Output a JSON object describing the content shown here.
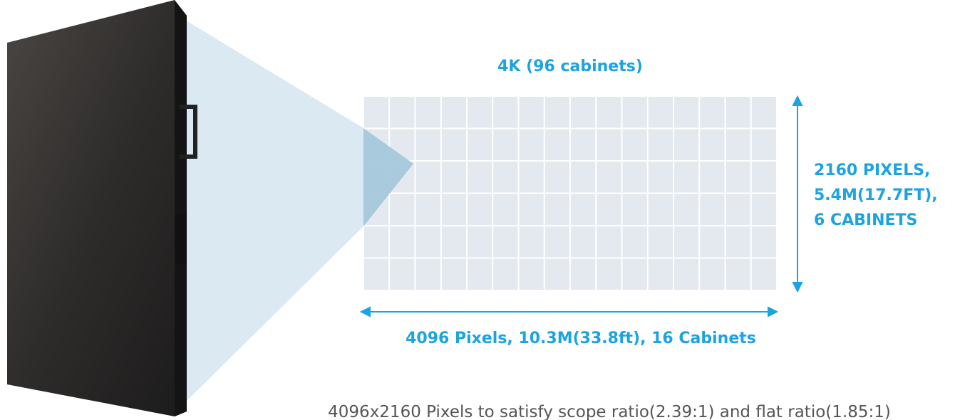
{
  "title": "4K (96 cabinets)",
  "height_label": [
    "2160 PIXELS,",
    "5.4M(17.7FT),",
    "6 CABINETS"
  ],
  "width_label": "4096 Pixels, 10.3M(33.8ft), 16 Cabinets",
  "caption": "4096x2160 Pixels to satisfy scope ratio(2.39:1) and flat ratio(1.85:1)"
}
